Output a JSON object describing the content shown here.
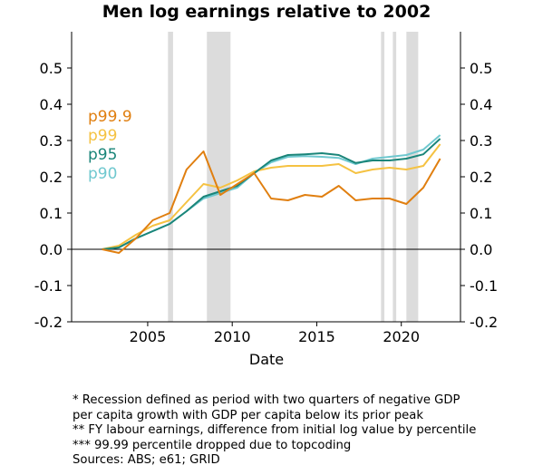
{
  "chart_data": {
    "type": "line",
    "title": "Men log earnings relative to 2002",
    "xlabel": "Date",
    "ylabel": "",
    "xlim": [
      2000.5,
      2023.5
    ],
    "ylim": [
      -0.2,
      0.6
    ],
    "x_ticks": [
      2005,
      2010,
      2015,
      2020
    ],
    "y_ticks": [
      -0.2,
      -0.1,
      0.0,
      0.1,
      0.2,
      0.3,
      0.4,
      0.5
    ],
    "y_tick_labels": [
      "-0.2",
      "-0.1",
      "0.0",
      "0.1",
      "0.2",
      "0.3",
      "0.4",
      "0.5"
    ],
    "y_axis_mirrored": true,
    "zero_line": 0,
    "grid": false,
    "legend_placement": "left, inline colored labels",
    "recessions": [
      [
        2006.2,
        2006.5
      ],
      [
        2008.5,
        2009.9
      ],
      [
        2018.8,
        2019.0
      ],
      [
        2019.5,
        2019.7
      ],
      [
        2020.3,
        2021.0
      ]
    ],
    "recession_color": "#dcdcdc",
    "x": [
      2002.3,
      2003.3,
      2004.3,
      2005.3,
      2006.3,
      2007.3,
      2008.3,
      2009.3,
      2010.3,
      2011.3,
      2012.3,
      2013.3,
      2014.3,
      2015.3,
      2016.3,
      2017.3,
      2018.3,
      2019.3,
      2020.3,
      2021.3,
      2022.3
    ],
    "series": [
      {
        "name": "p99.9",
        "color": "#e07f10",
        "values": [
          0.0,
          -0.01,
          0.03,
          0.08,
          0.1,
          0.22,
          0.27,
          0.15,
          0.18,
          0.21,
          0.14,
          0.135,
          0.15,
          0.145,
          0.175,
          0.135,
          0.14,
          0.14,
          0.125,
          0.17,
          0.25
        ]
      },
      {
        "name": "p99",
        "color": "#f5c242",
        "values": [
          0.0,
          0.01,
          0.04,
          0.065,
          0.08,
          0.13,
          0.18,
          0.17,
          0.19,
          0.215,
          0.225,
          0.23,
          0.23,
          0.23,
          0.235,
          0.21,
          0.22,
          0.225,
          0.22,
          0.23,
          0.29
        ]
      },
      {
        "name": "p95",
        "color": "#1a8579",
        "values": [
          0.0,
          0.005,
          0.03,
          0.05,
          0.07,
          0.105,
          0.145,
          0.16,
          0.175,
          0.21,
          0.245,
          0.26,
          0.262,
          0.265,
          0.26,
          0.238,
          0.245,
          0.245,
          0.25,
          0.262,
          0.305
        ]
      },
      {
        "name": "p90",
        "color": "#6fc8cf",
        "values": [
          0.0,
          0.005,
          0.03,
          0.05,
          0.07,
          0.105,
          0.14,
          0.155,
          0.17,
          0.21,
          0.24,
          0.255,
          0.257,
          0.255,
          0.252,
          0.235,
          0.25,
          0.255,
          0.26,
          0.275,
          0.315
        ]
      }
    ]
  },
  "notes": [
    "* Recession defined as period with two quarters of negative GDP",
    "per capita growth with GDP per capita below its prior peak",
    "** FY labour earnings, difference from initial log value by percentile",
    "*** 99.99 percentile dropped due to topcoding",
    "Sources: ABS; e61; GRID"
  ]
}
